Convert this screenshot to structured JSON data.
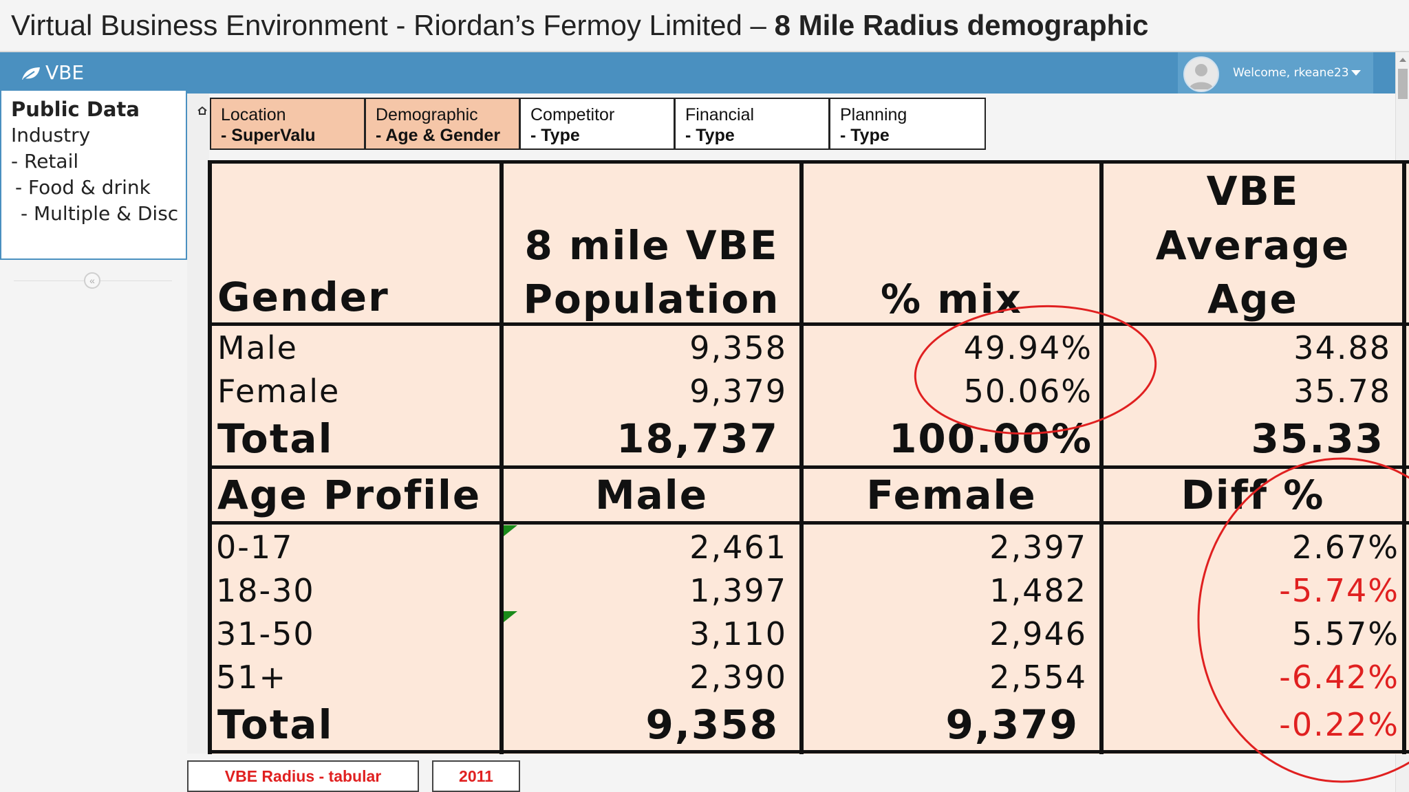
{
  "slide": {
    "title_main": "Virtual Business Environment - Riordan’s Fermoy Limited – ",
    "title_bold": "8 Mile Radius demographic"
  },
  "app": {
    "brand": "VBE",
    "welcome": "Welcome, rkeane23"
  },
  "sidebar": {
    "heading": "Public Data",
    "lines": [
      "Industry",
      "- Retail",
      " - Food & drink",
      "  - Multiple & Disc"
    ]
  },
  "tabs": [
    {
      "label": "Location",
      "sub": "- SuperValu"
    },
    {
      "label": "Demographic",
      "sub": "- Age & Gender"
    },
    {
      "label": "Competitor",
      "sub": "- Type"
    },
    {
      "label": "Financial",
      "sub": "- Type"
    },
    {
      "label": "Planning",
      "sub": "- Type"
    }
  ],
  "gender_table": {
    "headers": {
      "gender": "Gender",
      "pop_line1": "8 mile VBE",
      "pop_line2": "Population",
      "mix": "% mix",
      "age_line1": "VBE",
      "age_line2": "Average",
      "age_line3": "Age"
    },
    "rows": [
      {
        "label": "Male",
        "population": "9,358",
        "mix": "49.94%",
        "avg_age": "34.88"
      },
      {
        "label": "Female",
        "population": "9,379",
        "mix": "50.06%",
        "avg_age": "35.78"
      }
    ],
    "total": {
      "label": "Total",
      "population": "18,737",
      "mix": "100.00%",
      "avg_age": "35.33"
    }
  },
  "age_table": {
    "headers": {
      "profile": "Age Profile",
      "male": "Male",
      "female": "Female",
      "diff": "Diff %"
    },
    "rows": [
      {
        "label": "0-17",
        "male": "2,461",
        "female": "2,397",
        "diff": "2.67%"
      },
      {
        "label": "18-30",
        "male": "1,397",
        "female": "1,482",
        "diff": "-5.74%"
      },
      {
        "label": "31-50",
        "male": "3,110",
        "female": "2,946",
        "diff": "5.57%"
      },
      {
        "label": "51+",
        "male": "2,390",
        "female": "2,554",
        "diff": "-6.42%"
      }
    ],
    "total": {
      "label": "Total",
      "male": "9,358",
      "female": "9,379",
      "diff": "-0.22%"
    }
  },
  "colors": {
    "topbar": "#4a90c0",
    "table_fill": "#fde8da",
    "active_tab": "#f5c6a8",
    "negative": "#e02020",
    "annotation": "#e02020"
  },
  "buttons": {
    "radius": "VBE Radius - tabular",
    "year": "2011"
  }
}
